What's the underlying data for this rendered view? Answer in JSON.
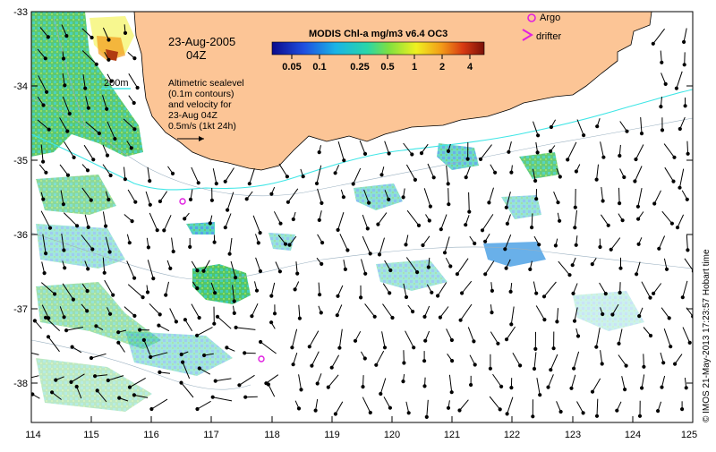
{
  "map": {
    "date_label": "23-Aug-2005",
    "time_label": "04Z",
    "scale_title": "MODIS Chl-a mg/m3 v6.4 OC3",
    "scale_ticks": [
      "0.05",
      "0.1",
      "0.25",
      "0.5",
      "1",
      "2",
      "4"
    ],
    "legend_argo": "Argo",
    "legend_drifter": "drifter",
    "isobath_label": "200m",
    "sealevel_lines": [
      "Altimetric sealevel",
      "(0.1m contours)",
      "and velocity for",
      "23-Aug 04Z",
      "0.5m/s (1kt 24h)"
    ],
    "credit": "© IMOS 21-May-2013 17:23:57 Hobart time",
    "x_ticks": [
      "114",
      "115",
      "116",
      "117",
      "118",
      "119",
      "120",
      "121",
      "122",
      "123",
      "124",
      "125"
    ],
    "y_ticks": [
      "-33",
      "-34",
      "-35",
      "-36",
      "-37",
      "-38"
    ],
    "colors": {
      "land": "#fcc596",
      "isobath": "#3fe6e6",
      "argo": "#e020e0",
      "chl_low": "#2a6ae0",
      "chl_mid": "#2ec9b0",
      "chl_green": "#3ebe5a",
      "chl_high": "#b03a10"
    }
  }
}
